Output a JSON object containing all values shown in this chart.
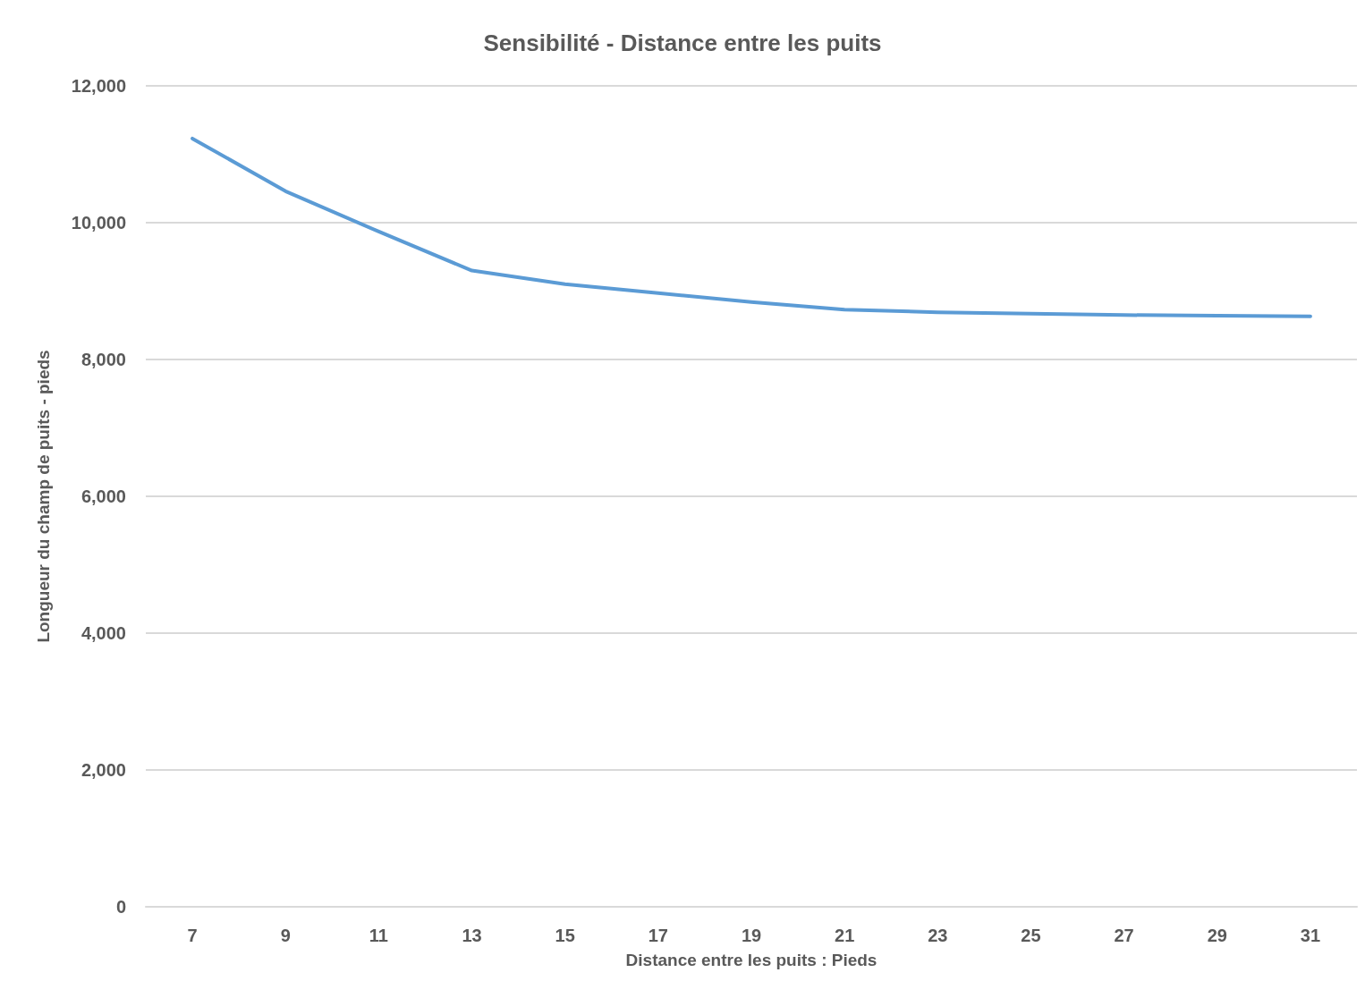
{
  "chart_data": {
    "type": "line",
    "title": "Sensibilité - Distance entre les puits",
    "xlabel": "Distance entre les puits : Pieds",
    "ylabel": "Longueur du champ de puits - pieds",
    "categories": [
      "7",
      "9",
      "11",
      "13",
      "15",
      "17",
      "19",
      "21",
      "23",
      "25",
      "27",
      "29",
      "31"
    ],
    "series": [
      {
        "color": "#5b9bd5",
        "values": [
          11230,
          10460,
          9870,
          9300,
          9100,
          8970,
          8840,
          8730,
          8690,
          8670,
          8650,
          8640,
          8630
        ]
      }
    ],
    "ylim": [
      0,
      12000
    ],
    "yticks": [
      {
        "value": 0,
        "label": "0"
      },
      {
        "value": 2000,
        "label": "2,000"
      },
      {
        "value": 4000,
        "label": "4,000"
      },
      {
        "value": 6000,
        "label": "6,000"
      },
      {
        "value": 8000,
        "label": "8,000"
      },
      {
        "value": 10000,
        "label": "10,000"
      },
      {
        "value": 12000,
        "label": "12,000"
      }
    ],
    "grid": "y",
    "marker": "none",
    "line_style": "solid"
  }
}
